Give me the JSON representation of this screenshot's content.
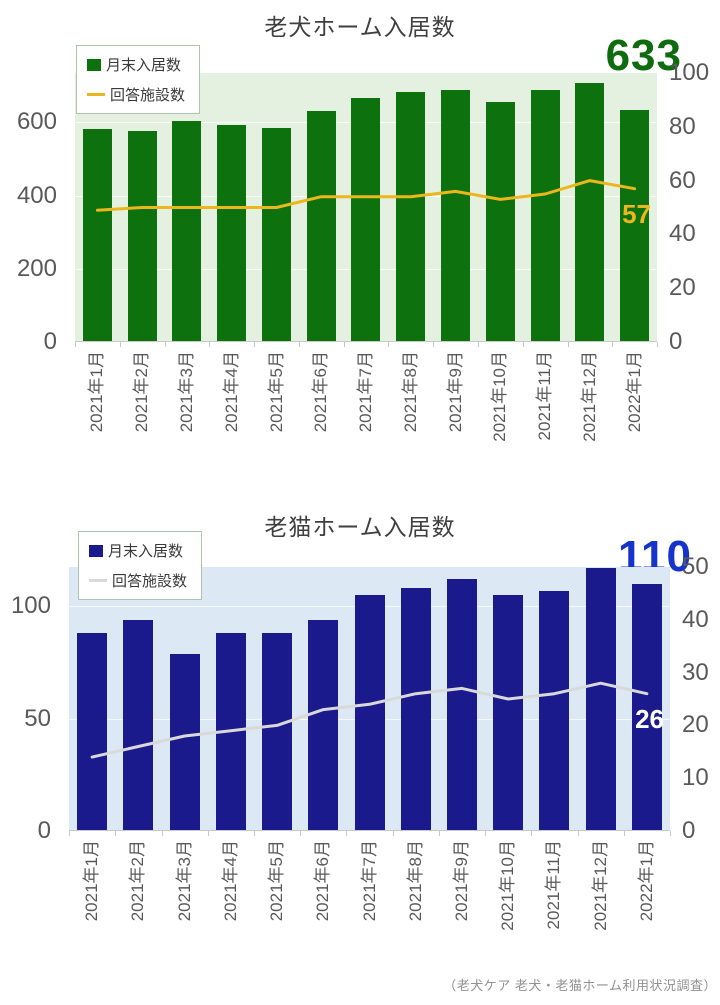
{
  "footer": {
    "source": "（老犬ケア 老犬・老猫ホーム利用状況調査）"
  },
  "chart_data": [
    {
      "type": "bar",
      "title": "老犬ホーム入居数",
      "categories": [
        "2021年1月",
        "2021年2月",
        "2021年3月",
        "2021年4月",
        "2021年5月",
        "2021年6月",
        "2021年7月",
        "2021年8月",
        "2021年9月",
        "2021年10月",
        "2021年11月",
        "2021年12月",
        "2022年1月"
      ],
      "series": [
        {
          "name": "月末入居数",
          "type": "bar",
          "axis": "left",
          "color": "#0d720d",
          "values": [
            583,
            578,
            605,
            592,
            584,
            630,
            668,
            682,
            690,
            657,
            688,
            709,
            633
          ]
        },
        {
          "name": "回答施設数",
          "type": "line",
          "axis": "right",
          "color": "#ecb61d",
          "values": [
            49,
            50,
            50,
            50,
            50,
            54,
            54,
            54,
            56,
            53,
            55,
            60,
            57
          ]
        }
      ],
      "left_axis": {
        "ticks": [
          0,
          200,
          400,
          600
        ],
        "max": 735
      },
      "right_axis": {
        "ticks": [
          0,
          20,
          40,
          60,
          80,
          100
        ],
        "max": 100
      },
      "highlight": {
        "text": "633",
        "color": "#0e6b0e"
      },
      "line_end_label": {
        "text": "57",
        "color": "#ecb61d"
      },
      "plot_bg": "#e5f1e0",
      "legend_position": "top-left",
      "gridlines": true
    },
    {
      "type": "bar",
      "title": "老猫ホーム入居数",
      "categories": [
        "2021年1月",
        "2021年2月",
        "2021年3月",
        "2021年4月",
        "2021年5月",
        "2021年6月",
        "2021年7月",
        "2021年8月",
        "2021年9月",
        "2021年10月",
        "2021年11月",
        "2021年12月",
        "2022年1月"
      ],
      "series": [
        {
          "name": "月末入居数",
          "type": "bar",
          "axis": "left",
          "color": "#1a1a8c",
          "values": [
            88,
            94,
            79,
            88,
            88,
            94,
            105,
            108,
            112,
            105,
            107,
            117,
            110
          ]
        },
        {
          "name": "回答施設数",
          "type": "line",
          "axis": "right",
          "color": "#d9d9d9",
          "values": [
            14,
            16,
            18,
            19,
            20,
            23,
            24,
            26,
            27,
            25,
            26,
            28,
            26
          ]
        }
      ],
      "left_axis": {
        "ticks": [
          0,
          50,
          100
        ],
        "max": 117.5
      },
      "right_axis": {
        "ticks": [
          0,
          10,
          20,
          30,
          40,
          50
        ],
        "max": 50
      },
      "highlight": {
        "text": "110",
        "color": "#1633cc"
      },
      "line_end_label": {
        "text": "26",
        "color": "#ffffff"
      },
      "plot_bg": "#dce8f4",
      "legend_position": "top-left",
      "gridlines": true
    }
  ]
}
